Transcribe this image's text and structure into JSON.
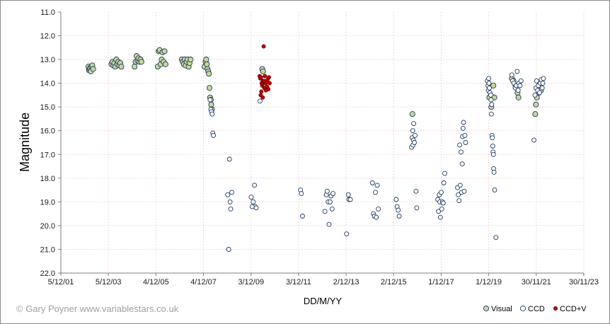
{
  "credit": "© Gary Poyner  www.variablestars.co.uk",
  "colors": {
    "visual": "#c8d89a",
    "ccd": "#ffffff",
    "ccd_v": "#c00000",
    "stroke": "#1f3a63",
    "grid": "#f2d7dc",
    "axis": "#7f7f7f"
  },
  "chart_data": {
    "type": "scatter",
    "xlabel": "DD/M/YY",
    "ylabel": "Magnitude",
    "x_range": [
      "2001-12-05",
      "2023-11-30"
    ],
    "x_ticks": [
      "5/12/01",
      "5/12/03",
      "4/12/05",
      "4/12/07",
      "3/12/09",
      "3/12/11",
      "2/12/13",
      "2/12/15",
      "1/12/17",
      "1/12/19",
      "30/11/21",
      "30/11/23"
    ],
    "y_ticks": [
      "11.0",
      "12.0",
      "13.0",
      "14.0",
      "15.0",
      "16.0",
      "17.0",
      "18.0",
      "19.0",
      "20.0",
      "21.0",
      "22.0"
    ],
    "ylim": [
      11.0,
      22.0
    ],
    "y_inverted": true,
    "grid": true,
    "legend_position": "bottom-right",
    "series": [
      {
        "name": "Visual",
        "points": [
          [
            "2003-02-01",
            13.3
          ],
          [
            "2003-02-10",
            13.45
          ],
          [
            "2003-02-20",
            13.4
          ],
          [
            "2003-03-01",
            13.35
          ],
          [
            "2003-03-10",
            13.5
          ],
          [
            "2003-03-20",
            13.3
          ],
          [
            "2003-04-01",
            13.25
          ],
          [
            "2003-04-15",
            13.4
          ],
          [
            "2004-01-20",
            13.2
          ],
          [
            "2004-02-05",
            13.1
          ],
          [
            "2004-02-20",
            13.25
          ],
          [
            "2004-03-05",
            13.15
          ],
          [
            "2004-03-20",
            13.3
          ],
          [
            "2004-04-05",
            13.0
          ],
          [
            "2004-04-20",
            13.2
          ],
          [
            "2004-05-05",
            13.1
          ],
          [
            "2004-05-20",
            13.25
          ],
          [
            "2004-06-05",
            13.15
          ],
          [
            "2004-06-20",
            13.3
          ],
          [
            "2005-01-10",
            13.3
          ],
          [
            "2005-01-25",
            13.1
          ],
          [
            "2005-02-10",
            12.85
          ],
          [
            "2005-02-25",
            13.05
          ],
          [
            "2005-03-10",
            12.95
          ],
          [
            "2005-03-25",
            13.1
          ],
          [
            "2005-04-10",
            13.0
          ],
          [
            "2005-04-25",
            13.1
          ],
          [
            "2006-01-01",
            13.3
          ],
          [
            "2006-01-15",
            12.65
          ],
          [
            "2006-01-30",
            12.6
          ],
          [
            "2006-02-15",
            13.2
          ],
          [
            "2006-03-01",
            13.0
          ],
          [
            "2006-03-15",
            12.7
          ],
          [
            "2006-04-01",
            13.1
          ],
          [
            "2006-04-15",
            12.65
          ],
          [
            "2006-04-30",
            13.2
          ],
          [
            "2007-01-05",
            13.0
          ],
          [
            "2007-01-20",
            13.1
          ],
          [
            "2007-02-05",
            13.2
          ],
          [
            "2007-02-20",
            13.0
          ],
          [
            "2007-03-05",
            13.25
          ],
          [
            "2007-03-20",
            13.1
          ],
          [
            "2007-04-05",
            13.0
          ],
          [
            "2007-04-20",
            13.3
          ],
          [
            "2007-05-05",
            13.15
          ],
          [
            "2007-05-20",
            13.0
          ],
          [
            "2007-12-20",
            13.3
          ],
          [
            "2008-01-05",
            13.1
          ],
          [
            "2008-01-15",
            13.0
          ],
          [
            "2008-01-25",
            13.2
          ],
          [
            "2008-02-05",
            13.4
          ],
          [
            "2008-02-15",
            13.5
          ],
          [
            "2008-02-25",
            13.6
          ],
          [
            "2008-03-05",
            14.2
          ],
          [
            "2008-03-15",
            14.6
          ],
          [
            "2008-03-25",
            14.7
          ],
          [
            "2008-04-01",
            14.9
          ],
          [
            "2008-04-10",
            15.1
          ],
          [
            "2010-05-25",
            13.4
          ],
          [
            "2010-06-05",
            13.5
          ],
          [
            "2016-09-15",
            15.3
          ],
          [
            "2019-12-10",
            14.6
          ],
          [
            "2020-01-10",
            15.0
          ],
          [
            "2020-02-10",
            14.1
          ],
          [
            "2020-02-25",
            14.6
          ],
          [
            "2020-11-20",
            13.8
          ],
          [
            "2020-12-15",
            13.9
          ],
          [
            "2021-01-15",
            14.1
          ],
          [
            "2021-02-15",
            14.4
          ],
          [
            "2021-03-01",
            14.6
          ],
          [
            "2021-11-15",
            15.3
          ],
          [
            "2021-11-25",
            14.9
          ],
          [
            "2021-12-10",
            14.6
          ],
          [
            "2022-01-10",
            14.4
          ],
          [
            "2022-02-10",
            14.3
          ]
        ]
      },
      {
        "name": "CCD",
        "points": [
          [
            "2008-03-25",
            15.1
          ],
          [
            "2008-04-05",
            15.2
          ],
          [
            "2008-04-15",
            15.3
          ],
          [
            "2008-04-25",
            16.1
          ],
          [
            "2008-05-05",
            16.2
          ],
          [
            "2008-03-15",
            14.7
          ],
          [
            "2008-12-10",
            18.7
          ],
          [
            "2009-01-05",
            17.2
          ],
          [
            "2009-01-15",
            19.0
          ],
          [
            "2009-01-25",
            19.3
          ],
          [
            "2009-02-10",
            18.6
          ],
          [
            "2008-12-25",
            21.0
          ],
          [
            "2009-12-05",
            18.8
          ],
          [
            "2010-01-05",
            19.0
          ],
          [
            "2010-01-25",
            18.3
          ],
          [
            "2010-02-05",
            19.2
          ],
          [
            "2010-02-20",
            19.25
          ],
          [
            "2009-12-20",
            19.2
          ],
          [
            "2010-04-20",
            14.75
          ],
          [
            "2012-01-01",
            18.5
          ],
          [
            "2012-01-15",
            18.65
          ],
          [
            "2012-02-01",
            19.6
          ],
          [
            "2013-01-10",
            19.4
          ],
          [
            "2013-02-01",
            18.7
          ],
          [
            "2013-02-15",
            18.55
          ],
          [
            "2013-03-01",
            19.0
          ],
          [
            "2013-03-15",
            19.95
          ],
          [
            "2013-04-01",
            19.0
          ],
          [
            "2013-04-15",
            18.75
          ],
          [
            "2013-05-01",
            19.3
          ],
          [
            "2013-05-15",
            18.65
          ],
          [
            "2013-12-10",
            20.35
          ],
          [
            "2014-01-05",
            18.7
          ],
          [
            "2014-01-15",
            18.9
          ],
          [
            "2014-02-05",
            18.9
          ],
          [
            "2015-01-10",
            18.2
          ],
          [
            "2015-01-25",
            19.5
          ],
          [
            "2015-02-10",
            19.6
          ],
          [
            "2015-02-25",
            18.6
          ],
          [
            "2015-03-10",
            19.65
          ],
          [
            "2015-03-25",
            18.3
          ],
          [
            "2015-04-10",
            19.3
          ],
          [
            "2016-01-10",
            18.9
          ],
          [
            "2016-01-25",
            19.2
          ],
          [
            "2016-02-10",
            19.35
          ],
          [
            "2016-02-25",
            19.6
          ],
          [
            "2016-09-01",
            16.7
          ],
          [
            "2016-09-10",
            16.3
          ],
          [
            "2016-09-20",
            16.0
          ],
          [
            "2016-09-25",
            16.6
          ],
          [
            "2016-10-01",
            16.4
          ],
          [
            "2016-10-05",
            15.7
          ],
          [
            "2016-10-15",
            16.5
          ],
          [
            "2016-10-25",
            16.2
          ],
          [
            "2016-11-10",
            18.55
          ],
          [
            "2016-11-20",
            19.25
          ],
          [
            "2017-10-10",
            18.9
          ],
          [
            "2017-10-20",
            19.4
          ],
          [
            "2017-11-01",
            18.7
          ],
          [
            "2017-11-10",
            19.0
          ],
          [
            "2017-11-20",
            19.65
          ],
          [
            "2017-12-01",
            18.6
          ],
          [
            "2017-12-10",
            19.3
          ],
          [
            "2017-12-20",
            19.0
          ],
          [
            "2018-01-10",
            18.2
          ],
          [
            "2018-01-25",
            17.8
          ],
          [
            "2018-01-01",
            19.05
          ],
          [
            "2018-08-10",
            18.4
          ],
          [
            "2018-08-20",
            18.7
          ],
          [
            "2018-09-01",
            18.95
          ],
          [
            "2018-09-10",
            16.6
          ],
          [
            "2018-09-20",
            18.3
          ],
          [
            "2018-10-01",
            16.9
          ],
          [
            "2018-10-10",
            18.6
          ],
          [
            "2018-10-20",
            17.4
          ],
          [
            "2018-10-25",
            16.25
          ],
          [
            "2018-11-01",
            15.9
          ],
          [
            "2018-11-10",
            15.65
          ],
          [
            "2018-11-20",
            18.55
          ],
          [
            "2018-12-01",
            16.2
          ],
          [
            "2018-12-10",
            16.5
          ],
          [
            "2019-11-10",
            13.9
          ],
          [
            "2019-11-20",
            14.1
          ],
          [
            "2019-11-25",
            14.3
          ],
          [
            "2019-12-01",
            13.8
          ],
          [
            "2019-12-05",
            14.0
          ],
          [
            "2019-12-10",
            14.2
          ],
          [
            "2019-12-20",
            14.4
          ],
          [
            "2020-01-01",
            14.5
          ],
          [
            "2020-01-05",
            14.7
          ],
          [
            "2020-01-10",
            15.3
          ],
          [
            "2020-01-15",
            14.9
          ],
          [
            "2020-01-20",
            16.2
          ],
          [
            "2020-01-25",
            16.3
          ],
          [
            "2020-02-01",
            16.65
          ],
          [
            "2020-02-05",
            16.9
          ],
          [
            "2020-02-10",
            17.0
          ],
          [
            "2020-02-15",
            17.6
          ],
          [
            "2020-02-20",
            17.75
          ],
          [
            "2020-03-01",
            18.5
          ],
          [
            "2020-03-20",
            20.5
          ],
          [
            "2020-11-20",
            13.65
          ],
          [
            "2020-12-01",
            13.9
          ],
          [
            "2020-12-20",
            14.0
          ],
          [
            "2021-01-10",
            14.2
          ],
          [
            "2021-01-25",
            14.1
          ],
          [
            "2021-02-10",
            13.5
          ],
          [
            "2021-02-25",
            14.3
          ],
          [
            "2021-03-10",
            14.0
          ],
          [
            "2021-03-25",
            14.1
          ],
          [
            "2021-04-10",
            13.9
          ],
          [
            "2021-10-25",
            16.4
          ],
          [
            "2021-11-10",
            14.5
          ],
          [
            "2021-11-25",
            14.2
          ],
          [
            "2021-12-05",
            13.9
          ],
          [
            "2021-12-20",
            14.3
          ],
          [
            "2022-01-01",
            14.1
          ],
          [
            "2022-01-20",
            14.4
          ],
          [
            "2022-02-01",
            14.0
          ],
          [
            "2022-02-15",
            13.85
          ],
          [
            "2022-03-01",
            14.2
          ],
          [
            "2022-03-10",
            14.0
          ],
          [
            "2022-03-20",
            13.8
          ]
        ]
      },
      {
        "name": "CCD+V",
        "points": [
          [
            "2010-04-15",
            13.7
          ],
          [
            "2010-04-25",
            13.8
          ],
          [
            "2010-05-05",
            13.75
          ],
          [
            "2010-05-15",
            14.0
          ],
          [
            "2010-05-25",
            14.1
          ],
          [
            "2010-06-05",
            13.9
          ],
          [
            "2010-06-15",
            12.45
          ],
          [
            "2010-06-25",
            14.2
          ],
          [
            "2010-07-05",
            13.7
          ],
          [
            "2010-07-15",
            14.0
          ],
          [
            "2010-07-25",
            13.95
          ],
          [
            "2010-08-05",
            14.15
          ],
          [
            "2010-08-15",
            13.85
          ],
          [
            "2010-08-25",
            14.25
          ],
          [
            "2010-09-05",
            13.75
          ],
          [
            "2010-09-15",
            14.0
          ],
          [
            "2010-05-01",
            14.5
          ],
          [
            "2010-05-10",
            14.35
          ],
          [
            "2010-06-01",
            14.6
          ],
          [
            "2010-06-20",
            13.9
          ],
          [
            "2010-07-20",
            14.3
          ]
        ]
      }
    ]
  }
}
